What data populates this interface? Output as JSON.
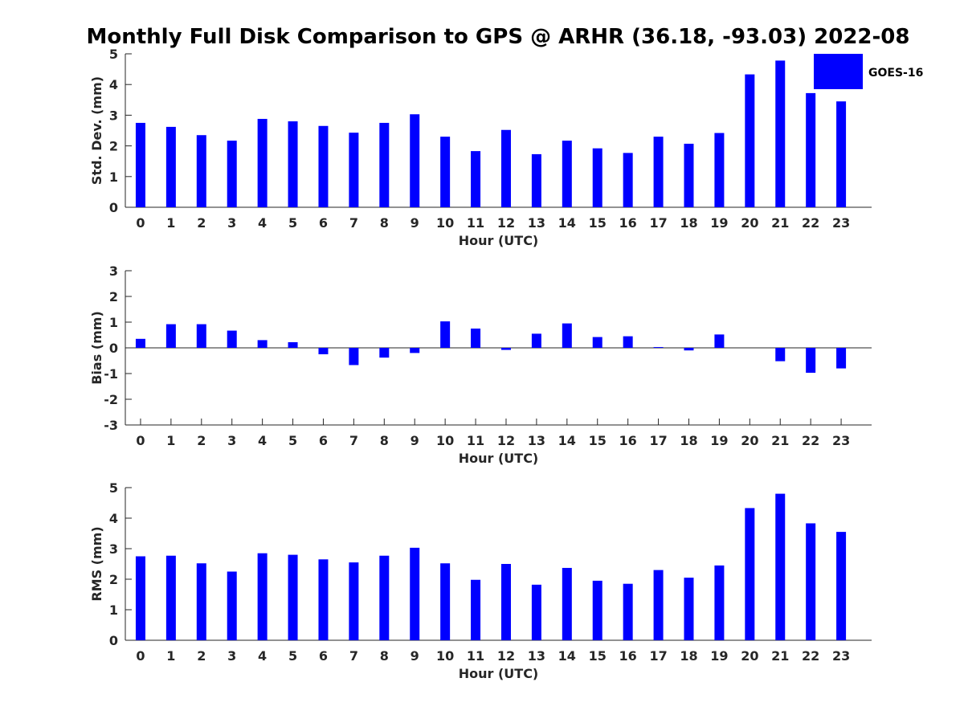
{
  "chart_data": {
    "title": "Monthly Full Disk Comparison to GPS @ ARHR (36.18, -93.03) 2022-08",
    "legend": {
      "label": "GOES-16",
      "position": "top-right"
    },
    "colors": {
      "bar": "#0000ff",
      "axis": "#262626"
    },
    "panels": [
      {
        "type": "bar",
        "ylabel": "Std. Dev. (mm)",
        "xlabel": "Hour (UTC)",
        "ylim": [
          0,
          5
        ],
        "yticks": [
          "0",
          "1",
          "2",
          "3",
          "4",
          "5"
        ],
        "categories": [
          "0",
          "1",
          "2",
          "3",
          "4",
          "5",
          "6",
          "7",
          "8",
          "9",
          "10",
          "11",
          "12",
          "13",
          "14",
          "15",
          "16",
          "17",
          "18",
          "19",
          "20",
          "21",
          "22",
          "23"
        ],
        "series": [
          {
            "name": "GOES-16",
            "values": [
              2.75,
              2.62,
              2.35,
              2.17,
              2.88,
              2.8,
              2.65,
              2.43,
              2.75,
              3.03,
              2.3,
              1.83,
              2.52,
              1.73,
              2.17,
              1.92,
              1.77,
              2.3,
              2.07,
              2.42,
              4.33,
              4.78,
              3.72,
              3.45
            ]
          }
        ]
      },
      {
        "type": "bar",
        "ylabel": "Bias (mm)",
        "xlabel": "Hour (UTC)",
        "ylim": [
          -3,
          3
        ],
        "yticks": [
          "-3",
          "-2",
          "-1",
          "0",
          "1",
          "2",
          "3"
        ],
        "zero_line": true,
        "categories": [
          "0",
          "1",
          "2",
          "3",
          "4",
          "5",
          "6",
          "7",
          "8",
          "9",
          "10",
          "11",
          "12",
          "13",
          "14",
          "15",
          "16",
          "17",
          "18",
          "19",
          "20",
          "21",
          "22",
          "23"
        ],
        "series": [
          {
            "name": "GOES-16",
            "values": [
              0.35,
              0.92,
              0.92,
              0.67,
              0.3,
              0.22,
              -0.25,
              -0.67,
              -0.38,
              -0.2,
              1.03,
              0.75,
              -0.08,
              0.55,
              0.95,
              0.42,
              0.45,
              0.03,
              -0.1,
              0.52,
              0.0,
              -0.52,
              -0.97,
              -0.8
            ]
          }
        ]
      },
      {
        "type": "bar",
        "ylabel": "RMS (mm)",
        "xlabel": "Hour (UTC)",
        "ylim": [
          0,
          5
        ],
        "yticks": [
          "0",
          "1",
          "2",
          "3",
          "4",
          "5"
        ],
        "categories": [
          "0",
          "1",
          "2",
          "3",
          "4",
          "5",
          "6",
          "7",
          "8",
          "9",
          "10",
          "11",
          "12",
          "13",
          "14",
          "15",
          "16",
          "17",
          "18",
          "19",
          "20",
          "21",
          "22",
          "23"
        ],
        "series": [
          {
            "name": "GOES-16",
            "values": [
              2.75,
              2.77,
              2.52,
              2.25,
              2.85,
              2.8,
              2.65,
              2.55,
              2.77,
              3.03,
              2.52,
              1.98,
              2.5,
              1.82,
              2.37,
              1.95,
              1.85,
              2.3,
              2.05,
              2.45,
              4.33,
              4.8,
              3.83,
              3.55
            ]
          }
        ]
      }
    ]
  }
}
